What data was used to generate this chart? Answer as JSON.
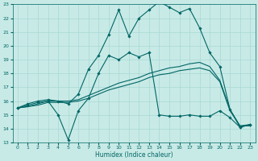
{
  "xlabel": "Humidex (Indice chaleur)",
  "xlim": [
    -0.5,
    23.5
  ],
  "ylim": [
    13,
    23
  ],
  "xticks": [
    0,
    1,
    2,
    3,
    4,
    5,
    6,
    7,
    8,
    9,
    10,
    11,
    12,
    13,
    14,
    15,
    16,
    17,
    18,
    19,
    20,
    21,
    22,
    23
  ],
  "yticks": [
    13,
    14,
    15,
    16,
    17,
    18,
    19,
    20,
    21,
    22,
    23
  ],
  "background_color": "#c8eae6",
  "line_color": "#006666",
  "grid_color": "#a8d8d4",
  "line_top_x": [
    0,
    1,
    2,
    3,
    4,
    5,
    6,
    7,
    8,
    9,
    10,
    11,
    12,
    13,
    14,
    15,
    16,
    17,
    18,
    19,
    20,
    21,
    22,
    23
  ],
  "line_top_y": [
    15.5,
    15.8,
    16.0,
    16.1,
    16.0,
    15.8,
    16.5,
    18.3,
    19.3,
    20.8,
    22.6,
    20.7,
    22.0,
    22.6,
    23.2,
    22.8,
    22.4,
    22.7,
    21.3,
    19.5,
    18.5,
    15.4,
    14.1,
    14.3
  ],
  "line_mid1_x": [
    0,
    1,
    2,
    3,
    4,
    5,
    6,
    7,
    8,
    9,
    10,
    11,
    12,
    13,
    14,
    15,
    16,
    17,
    18,
    19,
    20,
    21,
    22,
    23
  ],
  "line_mid1_y": [
    15.5,
    15.6,
    15.8,
    16.0,
    16.0,
    16.0,
    16.1,
    16.4,
    16.7,
    17.0,
    17.3,
    17.5,
    17.7,
    18.0,
    18.2,
    18.4,
    18.5,
    18.7,
    18.8,
    18.5,
    17.5,
    15.4,
    14.2,
    14.3
  ],
  "line_mid2_x": [
    0,
    1,
    2,
    3,
    4,
    5,
    6,
    7,
    8,
    9,
    10,
    11,
    12,
    13,
    14,
    15,
    16,
    17,
    18,
    19,
    20,
    21,
    22,
    23
  ],
  "line_mid2_y": [
    15.5,
    15.6,
    15.7,
    15.9,
    15.9,
    15.9,
    16.0,
    16.2,
    16.5,
    16.8,
    17.0,
    17.2,
    17.4,
    17.7,
    17.9,
    18.0,
    18.2,
    18.3,
    18.4,
    18.2,
    17.4,
    15.3,
    14.2,
    14.2
  ],
  "line_bot_x": [
    0,
    1,
    2,
    3,
    4,
    5,
    6,
    7,
    8,
    9,
    10,
    11,
    12,
    13,
    14,
    15,
    16,
    17,
    18,
    19,
    20,
    21,
    22,
    23
  ],
  "line_bot_y": [
    15.5,
    15.7,
    15.9,
    16.0,
    15.0,
    13.2,
    15.3,
    16.2,
    18.0,
    19.3,
    19.0,
    19.5,
    19.2,
    19.5,
    15.0,
    14.9,
    14.9,
    15.0,
    14.9,
    14.9,
    15.3,
    14.8,
    14.1,
    14.3
  ]
}
